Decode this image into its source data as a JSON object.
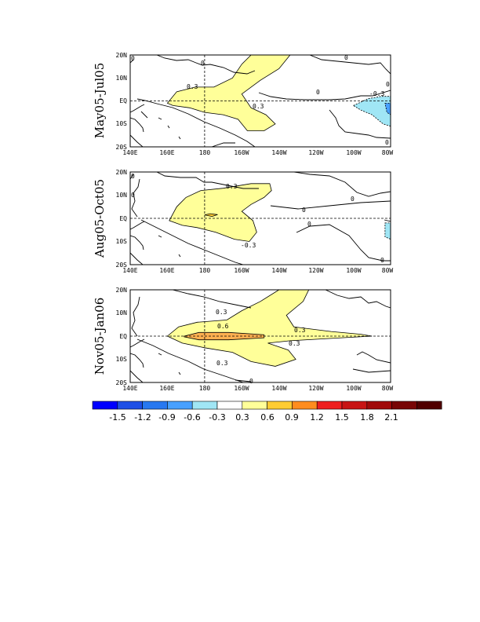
{
  "chart_data": [
    {
      "type": "heatmap",
      "title": "May05-Jul05",
      "xlim": [
        140,
        280
      ],
      "ylim": [
        -20,
        20
      ],
      "x_ticks": [
        "140E",
        "160E",
        "180",
        "160W",
        "140W",
        "120W",
        "100W",
        "80W"
      ],
      "y_ticks": [
        "20N",
        "10N",
        "EQ",
        "10S",
        "20S"
      ],
      "contour_labels": [
        "0",
        "0",
        "0.3",
        "0.3",
        "0",
        "-0.3",
        "0",
        "0",
        "0"
      ],
      "regions": [
        {
          "level": 0.3,
          "color": "#ffff99",
          "points": [
            [
              160,
              -1
            ],
            [
              165,
              4
            ],
            [
              175,
              6
            ],
            [
              185,
              6
            ],
            [
              195,
              10
            ],
            [
              200,
              16
            ],
            [
              205,
              20
            ],
            [
              226,
              20
            ],
            [
              220,
              14
            ],
            [
              210,
              9
            ],
            [
              200,
              3
            ],
            [
              205,
              -3
            ],
            [
              213,
              -6
            ],
            [
              218,
              -10
            ],
            [
              212,
              -13
            ],
            [
              203,
              -13
            ],
            [
              198,
              -8
            ],
            [
              190,
              -6
            ],
            [
              180,
              -5
            ],
            [
              172,
              -3
            ],
            [
              163,
              -2
            ]
          ]
        },
        {
          "level": -0.3,
          "color": "#a0e6f5",
          "points": [
            [
              260,
              -2
            ],
            [
              268,
              1
            ],
            [
              275,
              2
            ],
            [
              280,
              2
            ],
            [
              280,
              -11
            ],
            [
              276,
              -10
            ],
            [
              270,
              -6
            ],
            [
              264,
              -4
            ]
          ]
        },
        {
          "level": -0.6,
          "color": "#48a0ff",
          "points": [
            [
              277,
              -1
            ],
            [
              280,
              -1
            ],
            [
              280,
              -6
            ],
            [
              278,
              -5
            ]
          ]
        }
      ]
    },
    {
      "type": "heatmap",
      "title": "Aug05-Oct05",
      "xlim": [
        140,
        280
      ],
      "ylim": [
        -20,
        20
      ],
      "x_ticks": [
        "140E",
        "160E",
        "180",
        "160W",
        "140W",
        "120W",
        "100W",
        "80W"
      ],
      "y_ticks": [
        "20N",
        "10N",
        "EQ",
        "10S",
        "20S"
      ],
      "contour_labels": [
        "0",
        "0",
        "0.3",
        "0",
        "0",
        "0",
        "-0.3",
        "0"
      ],
      "regions": [
        {
          "level": 0.3,
          "color": "#ffff99",
          "points": [
            [
              161,
              -1
            ],
            [
              165,
              5
            ],
            [
              170,
              9
            ],
            [
              178,
              12
            ],
            [
              190,
              13
            ],
            [
              205,
              15
            ],
            [
              215,
              15
            ],
            [
              216,
              12
            ],
            [
              212,
              9
            ],
            [
              205,
              6
            ],
            [
              200,
              3
            ],
            [
              206,
              -1
            ],
            [
              208,
              -6
            ],
            [
              204,
              -10
            ],
            [
              196,
              -9
            ],
            [
              186,
              -6
            ],
            [
              176,
              -4
            ],
            [
              168,
              -3
            ]
          ]
        },
        {
          "level": 0.6,
          "color": "#ffcc33",
          "points": [
            [
              180,
              1.5
            ],
            [
              183,
              2
            ],
            [
              187,
              1.6
            ],
            [
              184,
              0.8
            ]
          ]
        },
        {
          "level": -0.3,
          "color": "#a0e6f5",
          "points": [
            [
              277,
              -2
            ],
            [
              280,
              -2
            ],
            [
              280,
              -9
            ],
            [
              277,
              -8
            ]
          ]
        }
      ]
    },
    {
      "type": "heatmap",
      "title": "Nov05-Jan06",
      "xlim": [
        140,
        280
      ],
      "ylim": [
        -20,
        20
      ],
      "x_ticks": [
        "140E",
        "160E",
        "180",
        "160W",
        "140W",
        "120W",
        "100W",
        "80W"
      ],
      "y_ticks": [
        "20N",
        "10N",
        "EQ",
        "10S",
        "20S"
      ],
      "contour_labels": [
        "0.3",
        "0.6",
        "0.3",
        "0.3",
        "0.3",
        "0"
      ],
      "regions": [
        {
          "level": 0.3,
          "color": "#ffff99",
          "points": [
            [
              160,
              0
            ],
            [
              166,
              4
            ],
            [
              176,
              6
            ],
            [
              192,
              7
            ],
            [
              200,
              11
            ],
            [
              210,
              15
            ],
            [
              220,
              20
            ],
            [
              236,
              20
            ],
            [
              233,
              15
            ],
            [
              224,
              9
            ],
            [
              228,
              4
            ],
            [
              248,
              2
            ],
            [
              264,
              0.8
            ],
            [
              270,
              0
            ],
            [
              248,
              -1
            ],
            [
              226,
              -2
            ],
            [
              214,
              -3
            ],
            [
              225,
              -6
            ],
            [
              229,
              -10
            ],
            [
              218,
              -13
            ],
            [
              205,
              -11
            ],
            [
              195,
              -7
            ],
            [
              180,
              -5
            ],
            [
              168,
              -3
            ]
          ]
        },
        {
          "level": 0.6,
          "color": "#ffb050",
          "points": [
            [
              169,
              0
            ],
            [
              177,
              1.6
            ],
            [
              193,
              1.6
            ],
            [
              212,
              0.6
            ],
            [
              212,
              -0.7
            ],
            [
              193,
              -1.6
            ],
            [
              177,
              -1.6
            ],
            [
              169,
              -0.3
            ]
          ]
        }
      ]
    }
  ],
  "colorbar": {
    "tick_labels": [
      "-1.5",
      "-1.2",
      "-0.9",
      "-0.6",
      "-0.3",
      "0.3",
      "0.6",
      "0.9",
      "1.2",
      "1.5",
      "1.8",
      "2.1"
    ],
    "colors": [
      "#0000ff",
      "#1e4fe6",
      "#2878f0",
      "#48a0ff",
      "#a0e6f5",
      "#ffffff",
      "#ffff99",
      "#ffcc33",
      "#ff8c1e",
      "#ee1e1e",
      "#c81414",
      "#a00a0a",
      "#780606",
      "#500000"
    ]
  }
}
